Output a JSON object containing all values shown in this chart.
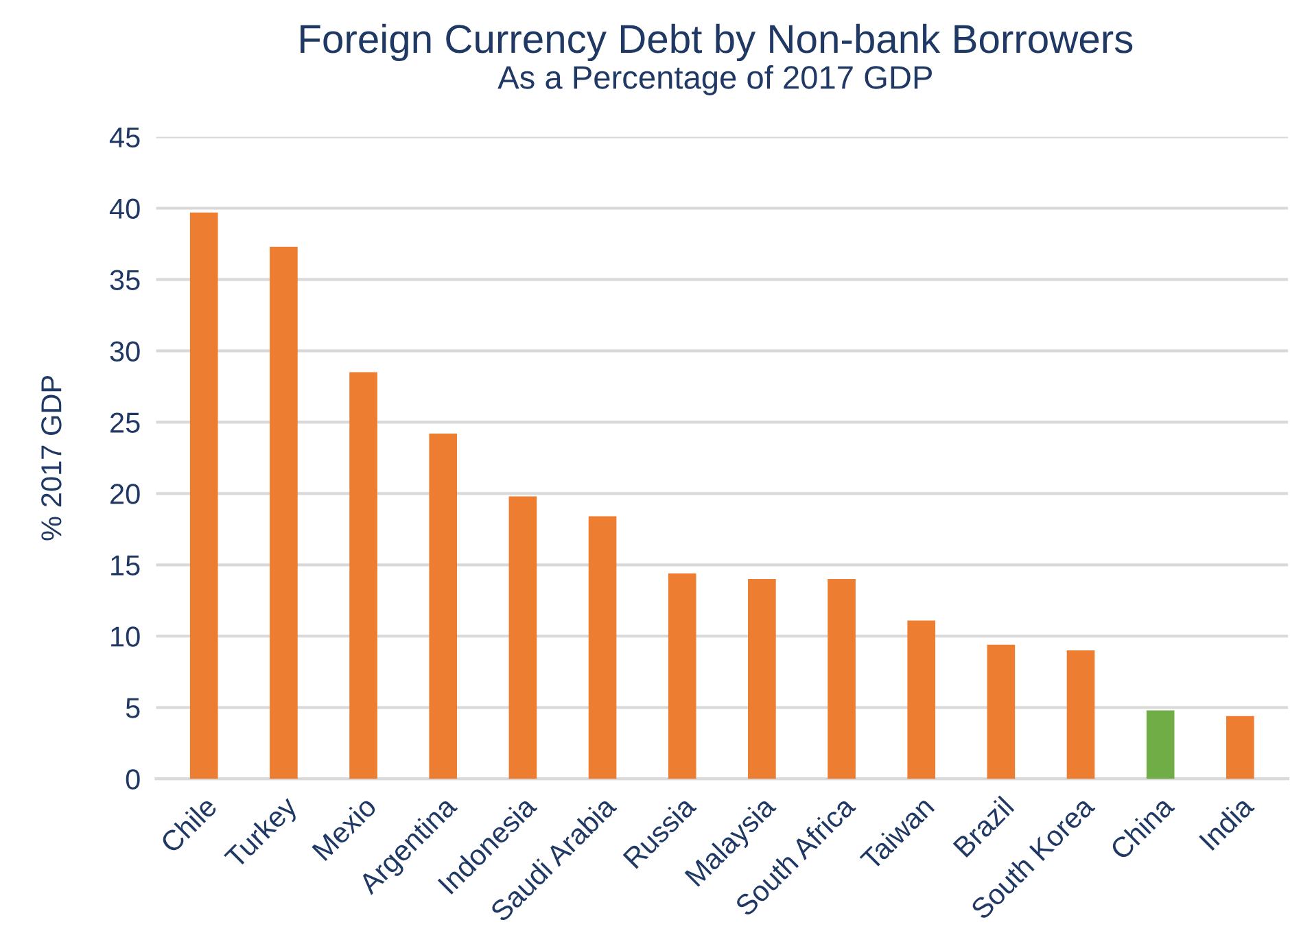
{
  "chart_data": {
    "type": "bar",
    "title": "Foreign Currency Debt by Non-bank Borrowers",
    "subtitle": "As a Percentage of 2017 GDP",
    "ylabel": "% 2017 GDP",
    "categories": [
      "Chile",
      "Turkey",
      "Mexio",
      "Argentina",
      "Indonesia",
      "Saudi Arabia",
      "Russia",
      "Malaysia",
      "South Africa",
      "Taiwan",
      "Brazil",
      "South Korea",
      "China",
      "India"
    ],
    "values": [
      39.7,
      37.3,
      28.5,
      24.2,
      19.8,
      18.4,
      14.4,
      14.0,
      14.0,
      11.1,
      9.4,
      9.0,
      4.8,
      4.4
    ],
    "colors": [
      "#ed7d31",
      "#ed7d31",
      "#ed7d31",
      "#ed7d31",
      "#ed7d31",
      "#ed7d31",
      "#ed7d31",
      "#ed7d31",
      "#ed7d31",
      "#ed7d31",
      "#ed7d31",
      "#ed7d31",
      "#70ad47",
      "#ed7d31"
    ],
    "ylim": [
      0,
      45
    ],
    "yticks": [
      0,
      5,
      10,
      15,
      20,
      25,
      30,
      35,
      40,
      45
    ],
    "grid": "y"
  }
}
